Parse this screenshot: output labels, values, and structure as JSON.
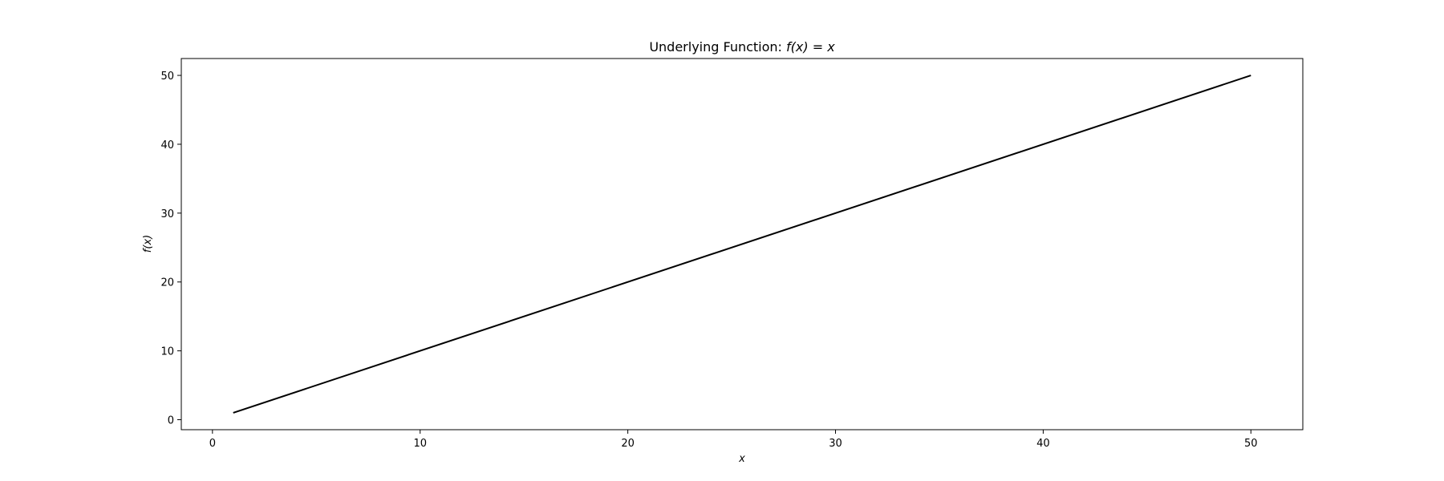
{
  "chart_data": {
    "type": "line",
    "title_prefix": "Underlying Function: ",
    "title_math": "f(x) = x",
    "xlabel": "x",
    "ylabel": "f(x)",
    "xlim": [
      -1.5,
      52.5
    ],
    "ylim": [
      -1.45,
      52.45
    ],
    "xticks": [
      0,
      10,
      20,
      30,
      40,
      50
    ],
    "yticks": [
      0,
      10,
      20,
      30,
      40,
      50
    ],
    "grid": false,
    "series": [
      {
        "color": "#000000",
        "x": [
          1,
          50
        ],
        "y": [
          1,
          50
        ]
      }
    ]
  }
}
